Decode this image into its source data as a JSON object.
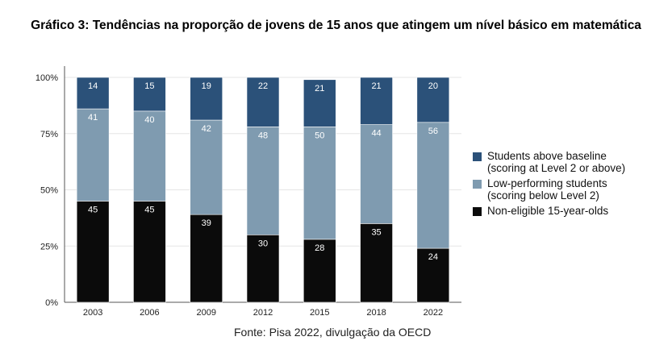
{
  "title": "Gráfico 3: Tendências na proporção de jovens de 15 anos que atingem um nível básico em matemática",
  "source": "Fonte: Pisa 2022, divulgação da OECD",
  "colors": {
    "above": "#2b5179",
    "low": "#7f9bb0",
    "noneligible": "#0b0b0b",
    "grid": "#e6e6e6",
    "axis": "#555555"
  },
  "legend": [
    {
      "label": "Students above baseline\n(scoring at Level 2 or above)",
      "color_key": "above"
    },
    {
      "label": "Low-performing students\n(scoring below Level 2)",
      "color_key": "low"
    },
    {
      "label": "Non-eligible 15-year-olds",
      "color_key": "noneligible"
    }
  ],
  "chart_data": {
    "type": "bar",
    "stacked": true,
    "categories": [
      "2003",
      "2006",
      "2009",
      "2012",
      "2015",
      "2018",
      "2022"
    ],
    "series": [
      {
        "name": "Non-eligible 15-year-olds",
        "values": [
          45,
          45,
          39,
          30,
          28,
          35,
          24
        ],
        "color_key": "noneligible"
      },
      {
        "name": "Low-performing students (scoring below Level 2)",
        "values": [
          41,
          40,
          42,
          48,
          50,
          44,
          56
        ],
        "color_key": "low"
      },
      {
        "name": "Students above baseline (scoring at Level 2 or above)",
        "values": [
          14,
          15,
          19,
          22,
          21,
          21,
          20
        ],
        "color_key": "above"
      }
    ],
    "y_ticks": [
      "0%",
      "25%",
      "50%",
      "75%",
      "100%"
    ],
    "ylim": [
      0,
      100
    ],
    "grid": true,
    "legend_position": "right"
  }
}
